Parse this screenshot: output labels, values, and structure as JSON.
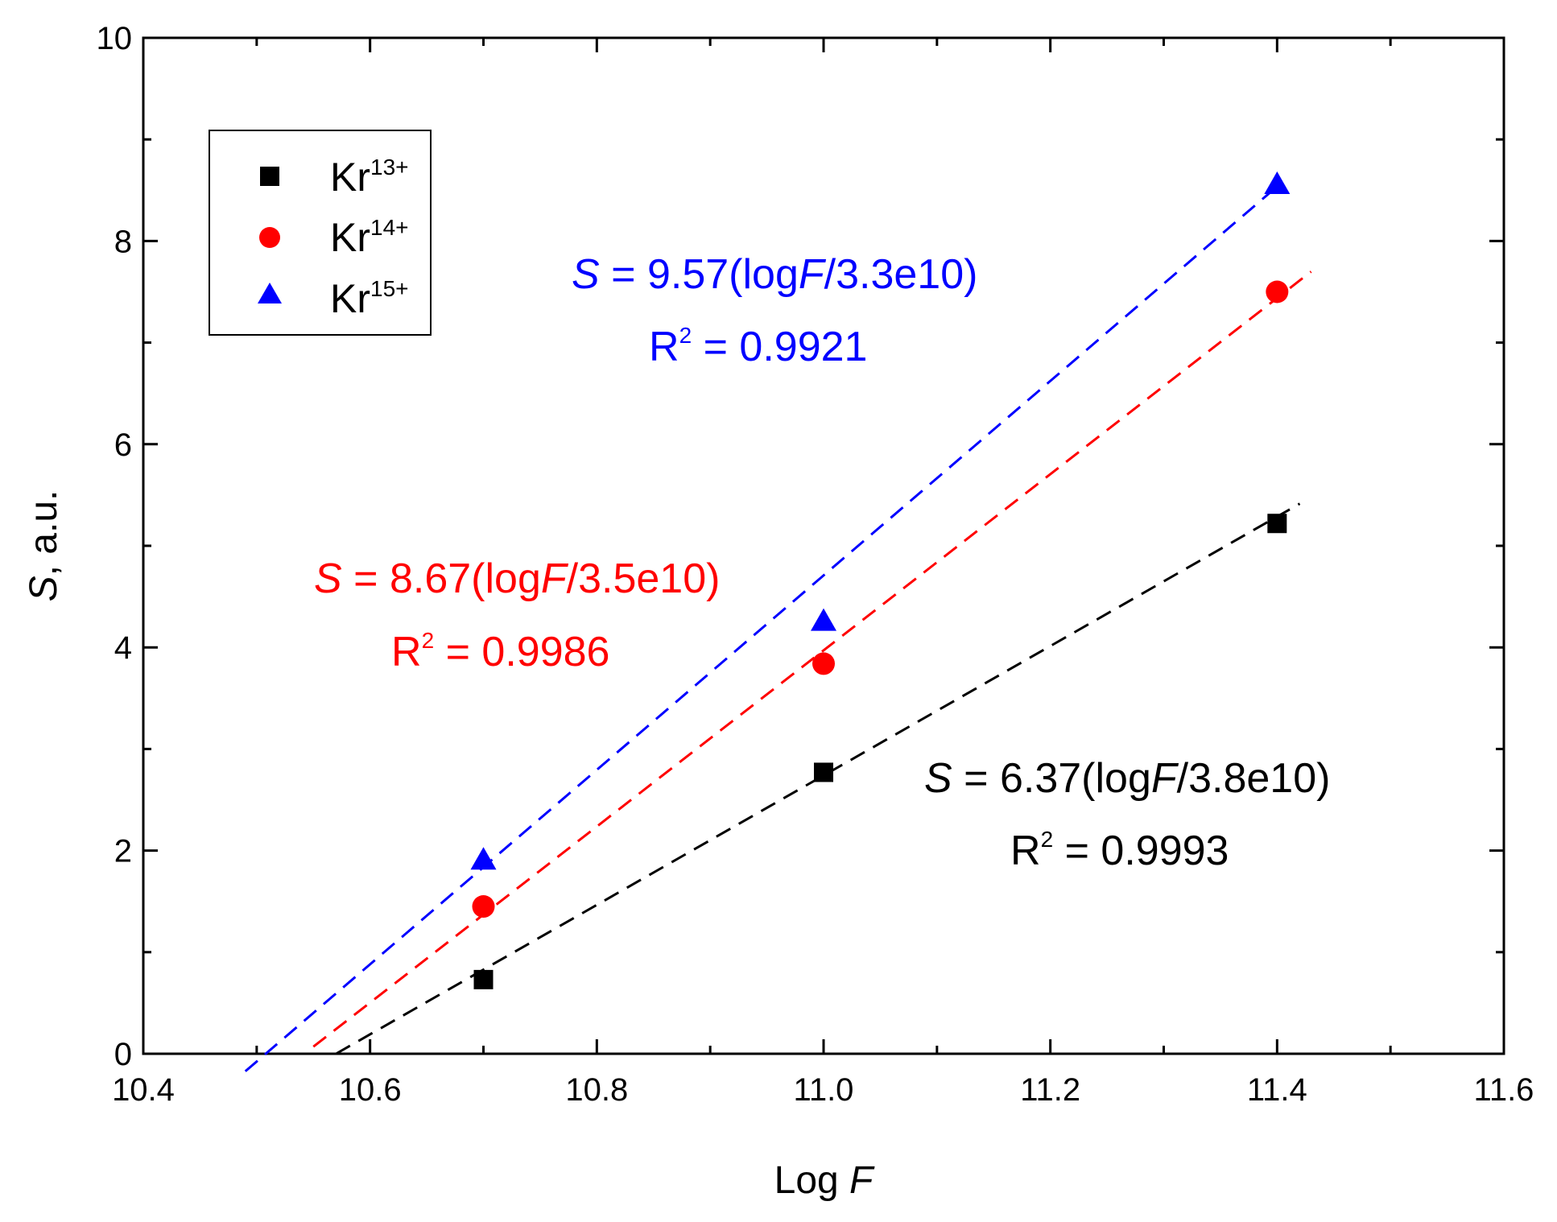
{
  "chart_data": {
    "type": "scatter",
    "xlabel": {
      "main": "Log ",
      "italic": "F"
    },
    "ylabel": {
      "italic": "S",
      "rest": ", a.u."
    },
    "xlim": [
      10.4,
      11.6
    ],
    "ylim": [
      0,
      10
    ],
    "x_ticks": [
      "10.4",
      "10.6",
      "10.8",
      "11.0",
      "11.2",
      "11.4",
      "11.6"
    ],
    "y_ticks": [
      "0",
      "2",
      "4",
      "6",
      "8",
      "10"
    ],
    "grid": false,
    "legend_position": "top-left",
    "series": [
      {
        "name": "Kr",
        "charge": "13+",
        "marker": "square",
        "color": "#000000",
        "points": [
          {
            "x": 10.7,
            "y": 0.73
          },
          {
            "x": 11.0,
            "y": 2.77
          },
          {
            "x": 11.4,
            "y": 5.22
          }
        ],
        "fit": {
          "slope": 6.37,
          "intercept_x": 10.57
        },
        "fit_range": [
          10.57,
          11.42
        ],
        "equation": {
          "s": "S",
          "mid": " = 6.37(log",
          "f": "F",
          "tail": "/3.8e10)"
        },
        "r2": {
          "r": "R",
          "exp": "2",
          "rest": " = 0.9993"
        }
      },
      {
        "name": "Kr",
        "charge": "14+",
        "marker": "circle",
        "color": "#ff0000",
        "points": [
          {
            "x": 10.7,
            "y": 1.45
          },
          {
            "x": 11.0,
            "y": 3.84
          },
          {
            "x": 11.4,
            "y": 7.5
          }
        ],
        "fit": {
          "slope": 8.67,
          "intercept_x": 10.542
        },
        "fit_range": [
          10.55,
          11.43
        ],
        "equation": {
          "s": "S",
          "mid": " = 8.67(log",
          "f": "F",
          "tail": "/3.5e10)"
        },
        "r2": {
          "r": "R",
          "exp": "2",
          "rest": " = 0.9986"
        }
      },
      {
        "name": "Kr",
        "charge": "15+",
        "marker": "triangle",
        "color": "#0000ff",
        "points": [
          {
            "x": 10.7,
            "y": 1.9
          },
          {
            "x": 11.0,
            "y": 4.25
          },
          {
            "x": 11.4,
            "y": 8.55
          }
        ],
        "fit": {
          "slope": 9.57,
          "intercept_x": 10.508
        },
        "fit_range": [
          10.49,
          11.4
        ],
        "equation": {
          "s": "S",
          "mid": " = 9.57(log",
          "f": "F",
          "tail": "/3.3e10)"
        },
        "r2": {
          "r": "R",
          "exp": "2",
          "rest": " = 0.9921"
        }
      }
    ]
  }
}
